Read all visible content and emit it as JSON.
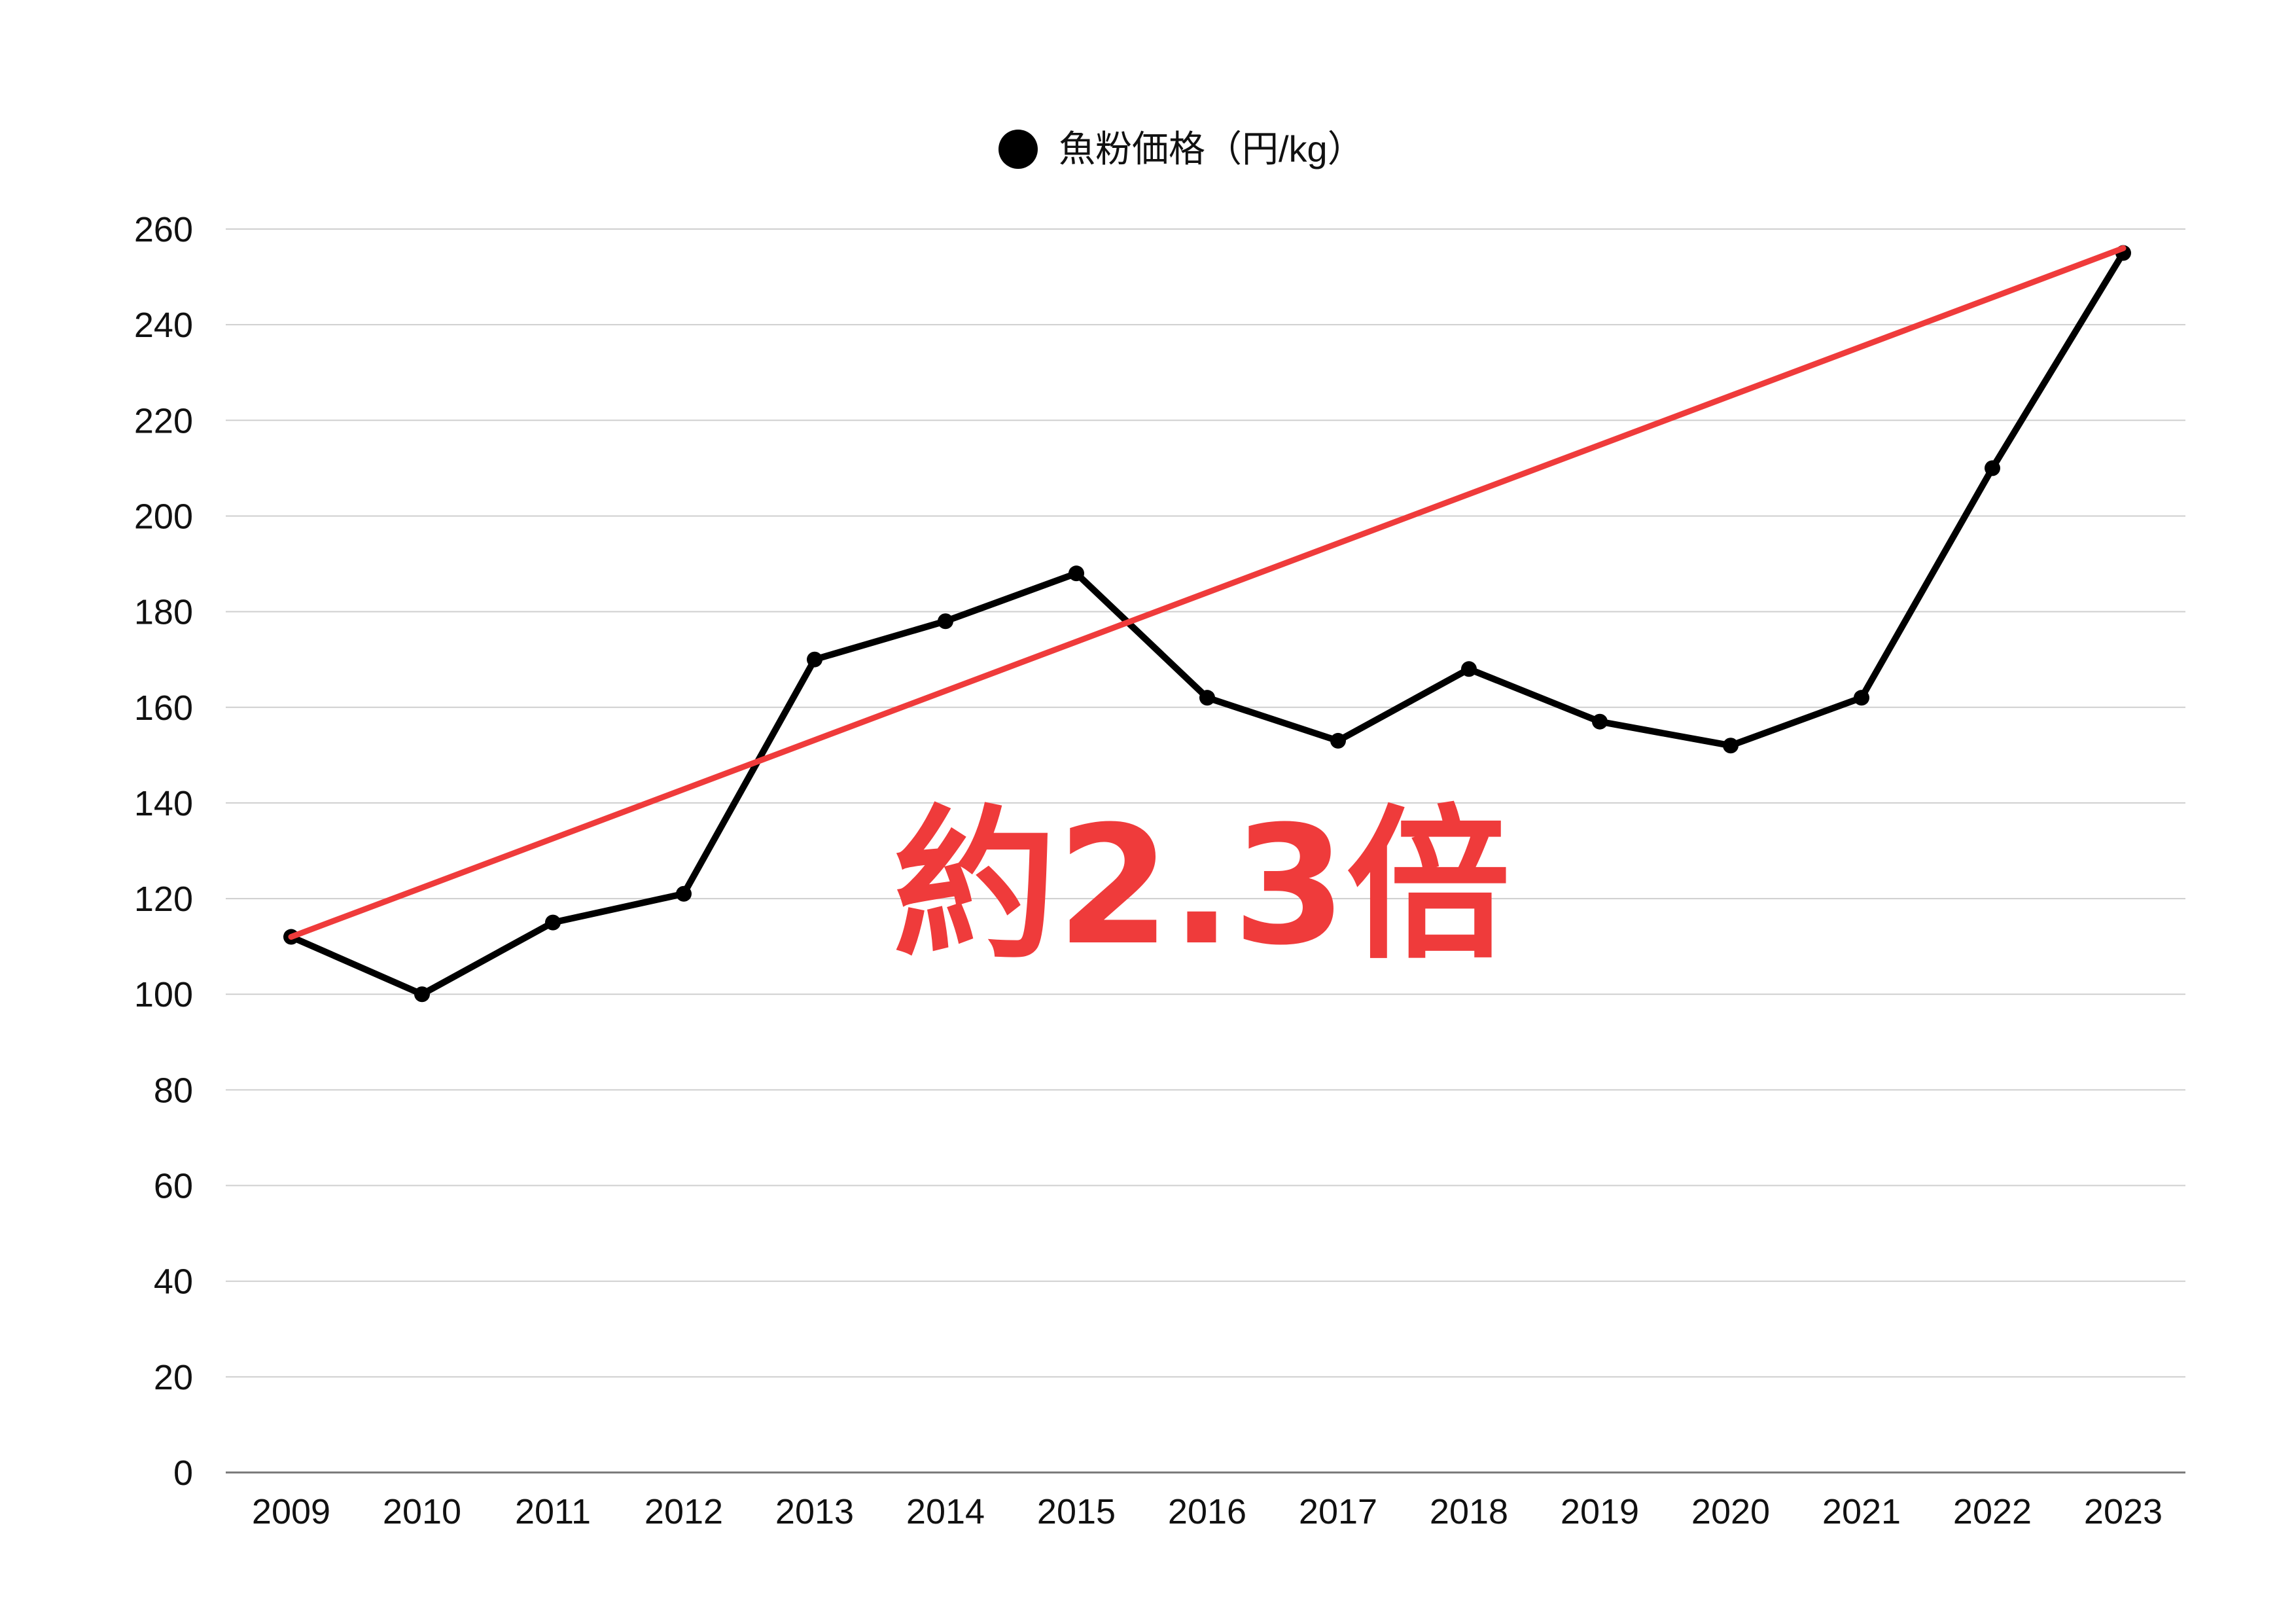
{
  "chart_data": {
    "type": "line",
    "x": [
      2009,
      2010,
      2011,
      2012,
      2013,
      2014,
      2015,
      2016,
      2017,
      2018,
      2019,
      2020,
      2021,
      2022,
      2023
    ],
    "series": [
      {
        "name": "魚粉価格（円/kg）",
        "values": [
          112,
          100,
          115,
          121,
          170,
          178,
          188,
          162,
          153,
          168,
          157,
          152,
          162,
          210,
          255
        ],
        "color": "#000000"
      }
    ],
    "trend_line": {
      "from": [
        2009,
        112
      ],
      "to": [
        2023,
        256
      ],
      "color": "#ef3b3b"
    },
    "annotation": {
      "text": "約2.3倍",
      "color": "#ef3b3b"
    },
    "ylim": [
      0,
      260
    ],
    "yticks": [
      0,
      20,
      40,
      60,
      80,
      100,
      120,
      140,
      160,
      180,
      200,
      220,
      240,
      260
    ],
    "grid": true,
    "legend_position": "top-center",
    "title": "",
    "xlabel": "",
    "ylabel": ""
  }
}
